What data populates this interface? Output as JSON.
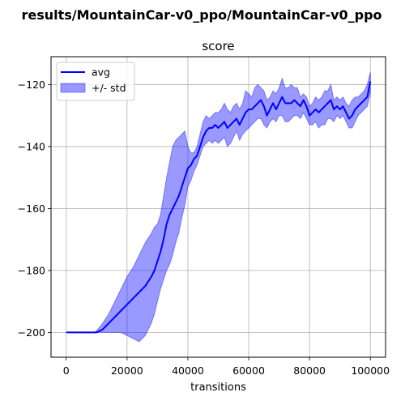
{
  "figure": {
    "suptitle": "results/MountainCar-v0_ppo/MountainCar-v0_ppo"
  },
  "chart_data": {
    "type": "line",
    "title": "score",
    "xlabel": "transitions",
    "ylabel": "",
    "xlim": [
      -5000,
      105000
    ],
    "ylim": [
      -208,
      -111
    ],
    "xticks": [
      0,
      20000,
      40000,
      60000,
      80000,
      100000
    ],
    "xtick_labels": [
      "0",
      "20000",
      "40000",
      "60000",
      "80000",
      "100000"
    ],
    "yticks": [
      -200,
      -180,
      -160,
      -140,
      -120
    ],
    "ytick_labels": [
      "−200",
      "−180",
      "−160",
      "−140",
      "−120"
    ],
    "grid": true,
    "legend_position": "top-left",
    "series": [
      {
        "name": "avg",
        "kind": "line",
        "color": "#0000ff",
        "x": [
          0,
          5000,
          9000,
          10000,
          12000,
          14000,
          16000,
          18000,
          20000,
          22000,
          24000,
          26000,
          28000,
          29000,
          30000,
          31000,
          32000,
          33000,
          34000,
          35000,
          36000,
          37000,
          38000,
          39000,
          40000,
          41000,
          42000,
          43000,
          44000,
          45000,
          46000,
          47000,
          48000,
          49000,
          50000,
          51000,
          52000,
          53000,
          54000,
          55000,
          56000,
          57000,
          58000,
          59000,
          60000,
          61000,
          62000,
          63000,
          64000,
          65000,
          66000,
          67000,
          68000,
          69000,
          70000,
          71000,
          72000,
          73000,
          74000,
          75000,
          76000,
          77000,
          78000,
          79000,
          80000,
          81000,
          82000,
          83000,
          84000,
          85000,
          86000,
          87000,
          88000,
          89000,
          90000,
          91000,
          92000,
          93000,
          94000,
          95000,
          96000,
          97000,
          98000,
          99000,
          100000
        ],
        "y": [
          -200,
          -200,
          -200,
          -200,
          -199,
          -197,
          -195,
          -193,
          -191,
          -189,
          -187,
          -185,
          -182,
          -180,
          -177,
          -174,
          -170,
          -165,
          -162,
          -160,
          -158,
          -156,
          -153,
          -150,
          -147,
          -146,
          -144,
          -143,
          -140,
          -137,
          -135,
          -134,
          -134,
          -133,
          -134,
          -133,
          -132,
          -134,
          -133,
          -132,
          -131,
          -133,
          -131,
          -129,
          -128,
          -128,
          -127,
          -126,
          -125,
          -127,
          -130,
          -128,
          -126,
          -128,
          -126,
          -124,
          -126,
          -126,
          -126,
          -125,
          -126,
          -127,
          -125,
          -127,
          -130,
          -129,
          -128,
          -129,
          -128,
          -127,
          -126,
          -125,
          -128,
          -127,
          -128,
          -127,
          -129,
          -131,
          -130,
          -128,
          -127,
          -126,
          -125,
          -124,
          -119
        ]
      },
      {
        "name": "+/- std",
        "kind": "band",
        "color": "#0000ff",
        "fill_opacity": 0.4,
        "x": [
          0,
          5000,
          9000,
          10000,
          12000,
          14000,
          16000,
          18000,
          20000,
          22000,
          24000,
          26000,
          28000,
          29000,
          30000,
          31000,
          32000,
          33000,
          34000,
          35000,
          36000,
          37000,
          38000,
          39000,
          40000,
          41000,
          42000,
          43000,
          44000,
          45000,
          46000,
          47000,
          48000,
          49000,
          50000,
          51000,
          52000,
          53000,
          54000,
          55000,
          56000,
          57000,
          58000,
          59000,
          60000,
          61000,
          62000,
          63000,
          64000,
          65000,
          66000,
          67000,
          68000,
          69000,
          70000,
          71000,
          72000,
          73000,
          74000,
          75000,
          76000,
          77000,
          78000,
          79000,
          80000,
          81000,
          82000,
          83000,
          84000,
          85000,
          86000,
          87000,
          88000,
          89000,
          90000,
          91000,
          92000,
          93000,
          94000,
          95000,
          96000,
          97000,
          98000,
          99000,
          100000
        ],
        "upper": [
          -200,
          -200,
          -200,
          -199.5,
          -197,
          -194,
          -190,
          -186,
          -182,
          -179,
          -175,
          -171,
          -168,
          -166,
          -165,
          -162,
          -156,
          -150,
          -145,
          -140,
          -138,
          -137,
          -136,
          -135,
          -140,
          -142,
          -142,
          -140,
          -136,
          -132,
          -130,
          -131,
          -130,
          -129,
          -129,
          -128,
          -126,
          -128,
          -129,
          -127,
          -126,
          -128,
          -126,
          -122,
          -123,
          -124,
          -121,
          -120,
          -121,
          -122,
          -125,
          -124,
          -122,
          -123,
          -121,
          -118,
          -121,
          -121,
          -120,
          -121,
          -121,
          -124,
          -123,
          -124,
          -127,
          -126,
          -124,
          -125,
          -124,
          -122,
          -122,
          -120,
          -125,
          -124,
          -125,
          -124,
          -126,
          -127,
          -125,
          -124,
          -124,
          -123,
          -122,
          -120,
          -116
        ],
        "lower": [
          -200,
          -200,
          -200,
          -200,
          -200,
          -200,
          -200,
          -200,
          -201,
          -202,
          -203,
          -201,
          -197,
          -194,
          -190,
          -186,
          -183,
          -180,
          -178,
          -175,
          -171,
          -168,
          -163,
          -159,
          -153,
          -151,
          -148,
          -146,
          -143,
          -140,
          -139,
          -138,
          -139,
          -138,
          -139,
          -138,
          -137,
          -140,
          -139,
          -137,
          -135,
          -138,
          -136,
          -135,
          -134,
          -133,
          -132,
          -131,
          -131,
          -133,
          -134,
          -132,
          -131,
          -132,
          -130,
          -130,
          -132,
          -132,
          -131,
          -130,
          -130,
          -131,
          -129,
          -131,
          -133,
          -133,
          -132,
          -134,
          -133,
          -133,
          -131,
          -131,
          -132,
          -130,
          -131,
          -130,
          -132,
          -134,
          -134,
          -132,
          -130,
          -129,
          -128,
          -127,
          -123
        ]
      }
    ],
    "legend": {
      "items": [
        {
          "label": "avg",
          "kind": "line",
          "color": "#0000ff"
        },
        {
          "label": "+/- std",
          "kind": "patch",
          "color": "#0000ff"
        }
      ]
    }
  }
}
